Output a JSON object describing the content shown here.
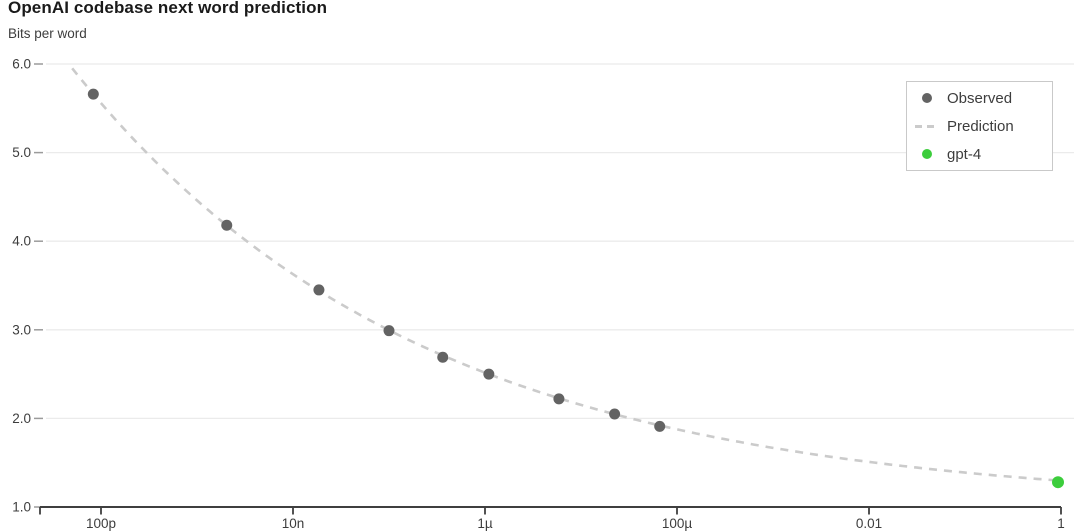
{
  "chart": {
    "title": "OpenAI codebase next word prediction",
    "y_axis_title": "Bits per word"
  },
  "chart_data": {
    "type": "scatter",
    "title": "OpenAI codebase next word prediction",
    "xlabel": "",
    "ylabel": "Bits per word",
    "x_scale": "log",
    "grid": "horizontal",
    "legend_position": "top-right",
    "ylim": [
      1.0,
      6.0
    ],
    "xlim_log10": [
      -10.64,
      0
    ],
    "colors": {
      "observed": "#636363",
      "prediction": "#cbcbcb",
      "gpt4": "#3ccd3c",
      "gridline": "#ebebeb",
      "axis_line": "#3f3f3f",
      "y_tick": "#9b9b9b",
      "tick_text": "#3d3d3d"
    },
    "x_ticks": [
      {
        "label": "100p",
        "log10": -10
      },
      {
        "label": "10n",
        "log10": -8
      },
      {
        "label": "1µ",
        "log10": -6
      },
      {
        "label": "100µ",
        "log10": -4
      },
      {
        "label": "0.01",
        "log10": -2
      },
      {
        "label": "1",
        "log10": 0
      }
    ],
    "y_ticks": [
      {
        "label": "1.0",
        "value": 1.0
      },
      {
        "label": "2.0",
        "value": 2.0
      },
      {
        "label": "3.0",
        "value": 3.0
      },
      {
        "label": "4.0",
        "value": 4.0
      },
      {
        "label": "5.0",
        "value": 5.0
      },
      {
        "label": "6.0",
        "value": 6.0
      }
    ],
    "series": [
      {
        "name": "Observed",
        "type": "scatter",
        "marker": "dot",
        "points": [
          {
            "x_log10": -10.08,
            "bits_per_word": 5.66
          },
          {
            "x_log10": -8.69,
            "bits_per_word": 4.18
          },
          {
            "x_log10": -7.73,
            "bits_per_word": 3.45
          },
          {
            "x_log10": -7.0,
            "bits_per_word": 2.99
          },
          {
            "x_log10": -6.44,
            "bits_per_word": 2.69
          },
          {
            "x_log10": -5.96,
            "bits_per_word": 2.5
          },
          {
            "x_log10": -5.23,
            "bits_per_word": 2.22
          },
          {
            "x_log10": -4.65,
            "bits_per_word": 2.05
          },
          {
            "x_log10": -4.18,
            "bits_per_word": 1.91
          }
        ]
      },
      {
        "name": "Prediction",
        "type": "line",
        "style": "dashed",
        "fit": {
          "form": "power_law",
          "a": 0.287,
          "b": -0.12,
          "c": 1.01,
          "x_log10_range": [
            -10.3,
            0
          ]
        }
      },
      {
        "name": "gpt-4",
        "type": "scatter",
        "marker": "dot",
        "points": [
          {
            "x_log10": 0,
            "bits_per_word": 1.28
          }
        ]
      }
    ],
    "legend": {
      "items": [
        {
          "label": "Observed",
          "marker": "dot",
          "color": "#636363"
        },
        {
          "label": "Prediction",
          "marker": "dash",
          "color": "#cbcbcb"
        },
        {
          "label": "gpt-4",
          "marker": "dot",
          "color": "#3ccd3c"
        }
      ]
    }
  }
}
